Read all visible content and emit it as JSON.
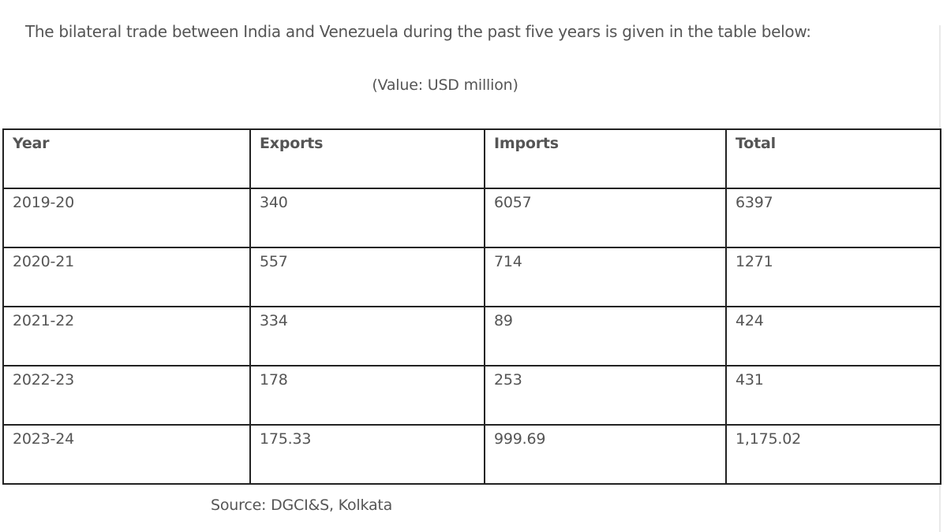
{
  "intro_text": "The bilateral trade between India and Venezuela during the past five years is given in the table below:",
  "unit_text": "(Value: USD million)",
  "table": {
    "headers": [
      "Year",
      "Exports",
      "Imports",
      "Total"
    ],
    "rows": [
      [
        "2019-20",
        "340",
        "6057",
        "6397"
      ],
      [
        "2020-21",
        "557",
        "714",
        "1271"
      ],
      [
        "2021-22",
        "334",
        "89",
        "424"
      ],
      [
        "2022-23",
        "178",
        "253",
        "431"
      ],
      [
        "2023-24",
        "175.33",
        "999.69",
        "1,175.02"
      ]
    ]
  },
  "source_text": "Source: DGCI&S, Kolkata"
}
